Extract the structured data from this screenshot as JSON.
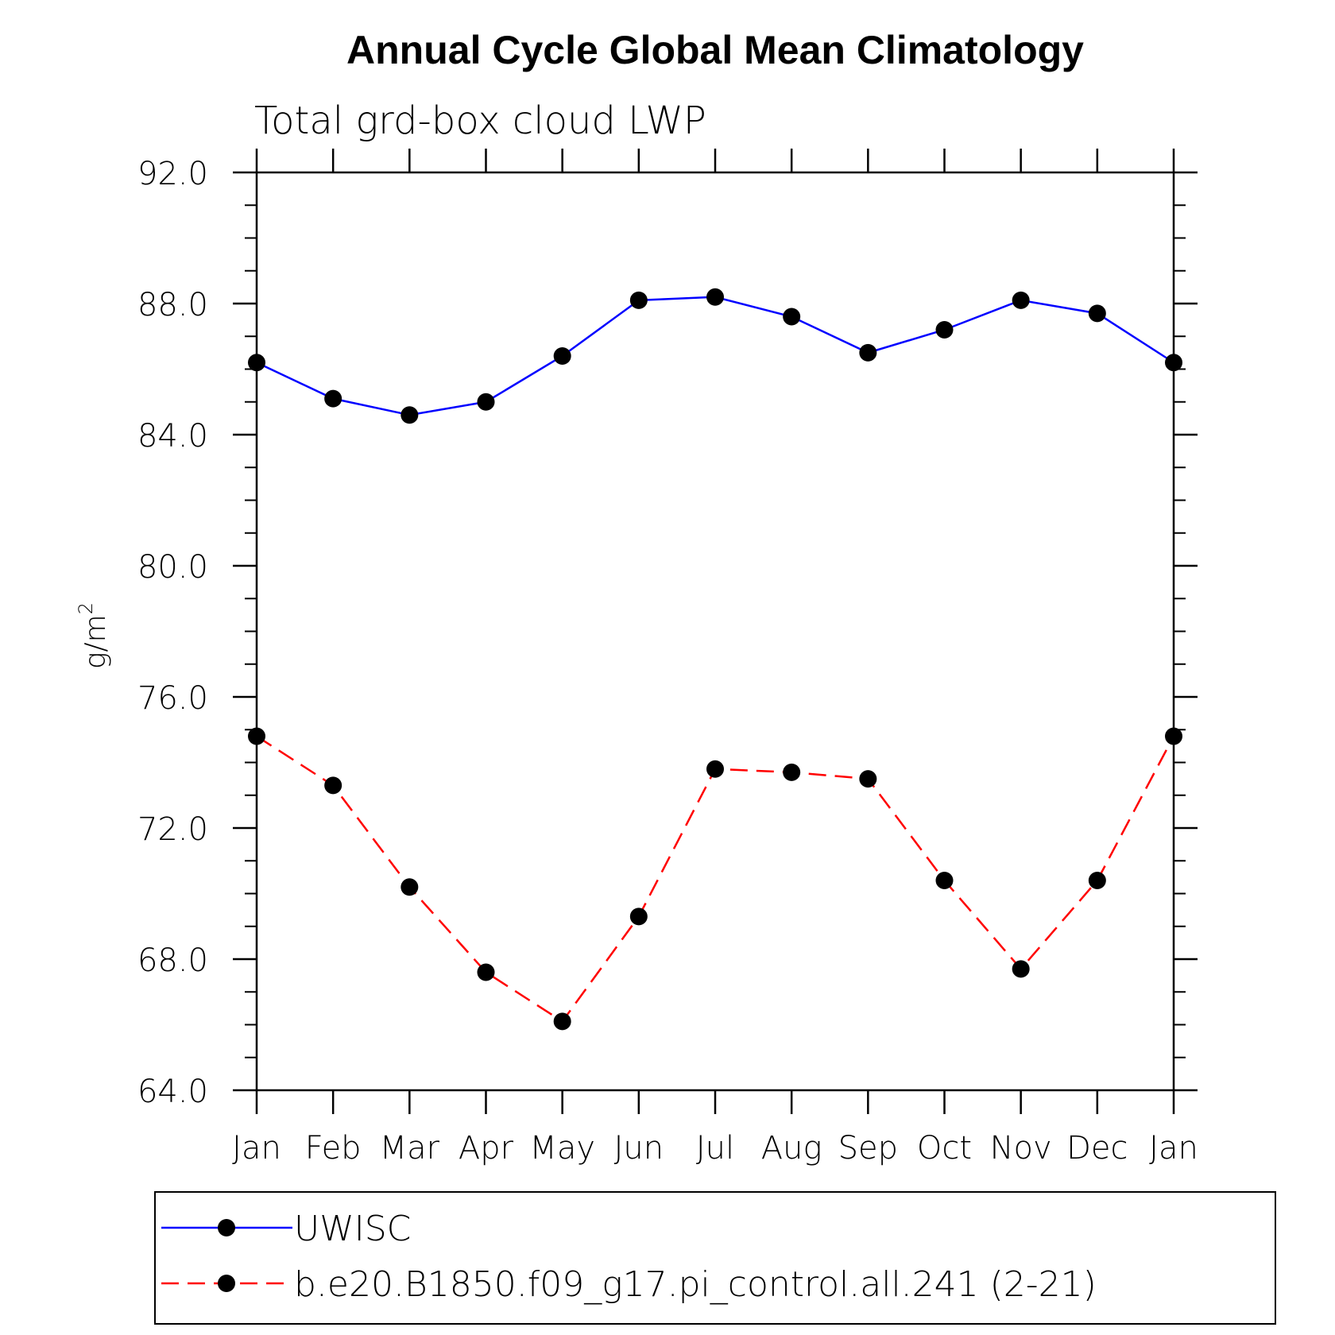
{
  "chart_data": {
    "type": "line",
    "title": "Annual Cycle Global Mean Climatology",
    "subtitle": "Total grd-box cloud LWP",
    "ylabel": "g/m",
    "ylabel_superscript": "2",
    "xlabel": "",
    "categories": [
      "Jan",
      "Feb",
      "Mar",
      "Apr",
      "May",
      "Jun",
      "Jul",
      "Aug",
      "Sep",
      "Oct",
      "Nov",
      "Dec",
      "Jan"
    ],
    "ylim": [
      64.0,
      92.0
    ],
    "yticks": [
      "64.0",
      "68.0",
      "72.0",
      "76.0",
      "80.0",
      "84.0",
      "88.0",
      "92.0"
    ],
    "y_minor_step": 1.0,
    "grid": false,
    "legend_position": "bottom",
    "series": [
      {
        "name": "UWISC",
        "color": "#0000ff",
        "line_style": "solid",
        "marker": "filled-circle",
        "values": [
          86.2,
          85.1,
          84.6,
          85.0,
          86.4,
          88.1,
          88.2,
          87.6,
          86.5,
          87.2,
          88.1,
          87.7,
          86.2
        ]
      },
      {
        "name": "b.e20.B1850.f09_g17.pi_control.all.241 (2-21)",
        "color": "#ff0000",
        "line_style": "dashed",
        "marker": "filled-circle",
        "values": [
          74.8,
          73.3,
          70.2,
          67.6,
          66.1,
          69.3,
          73.8,
          73.7,
          73.5,
          70.4,
          67.7,
          70.4,
          74.8
        ]
      }
    ]
  }
}
